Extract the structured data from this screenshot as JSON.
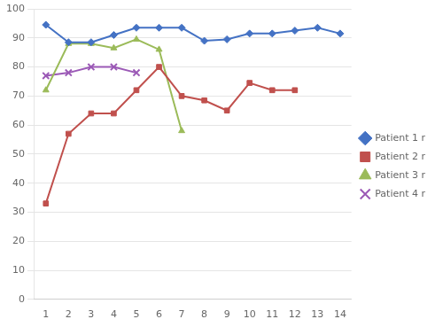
{
  "chart_data": {
    "type": "line",
    "series": [
      {
        "name": "Patient 1 r",
        "color": "#4472C4",
        "marker": "diamond",
        "x": [
          1,
          2,
          3,
          4,
          5,
          6,
          7,
          8,
          9,
          10,
          11,
          12,
          13,
          14
        ],
        "values": [
          94.5,
          88.5,
          88.5,
          91,
          93.5,
          93.5,
          93.5,
          89,
          89.5,
          91.5,
          91.5,
          92.5,
          93.5,
          91.5
        ]
      },
      {
        "name": "Patient 2 r",
        "color": "#C0504D",
        "marker": "square",
        "x": [
          1,
          2,
          3,
          4,
          5,
          6,
          7,
          8,
          9,
          10,
          11,
          12
        ],
        "values": [
          33,
          57,
          64,
          64,
          72,
          80,
          70,
          68.5,
          65,
          74.5,
          72,
          72
        ]
      },
      {
        "name": "Patient 3 r",
        "color": "#9BBB59",
        "marker": "triangle",
        "x": [
          1,
          2,
          3,
          4,
          5,
          6,
          7
        ],
        "values": [
          72,
          88,
          88,
          86.5,
          89.5,
          86,
          58
        ]
      },
      {
        "name": "Patient 4 r",
        "color": "#9B59B6",
        "marker": "x",
        "x": [
          1,
          2,
          3,
          4,
          5
        ],
        "values": [
          77,
          78,
          80,
          80,
          78
        ]
      }
    ],
    "xlim": [
      0.5,
      14.5
    ],
    "ylim": [
      0,
      100
    ],
    "xticks": [
      1,
      2,
      3,
      4,
      5,
      6,
      7,
      8,
      9,
      10,
      11,
      12,
      13,
      14
    ],
    "yticks": [
      0,
      10,
      20,
      30,
      40,
      50,
      60,
      70,
      80,
      90,
      100
    ],
    "grid": "y",
    "legend": "right"
  }
}
